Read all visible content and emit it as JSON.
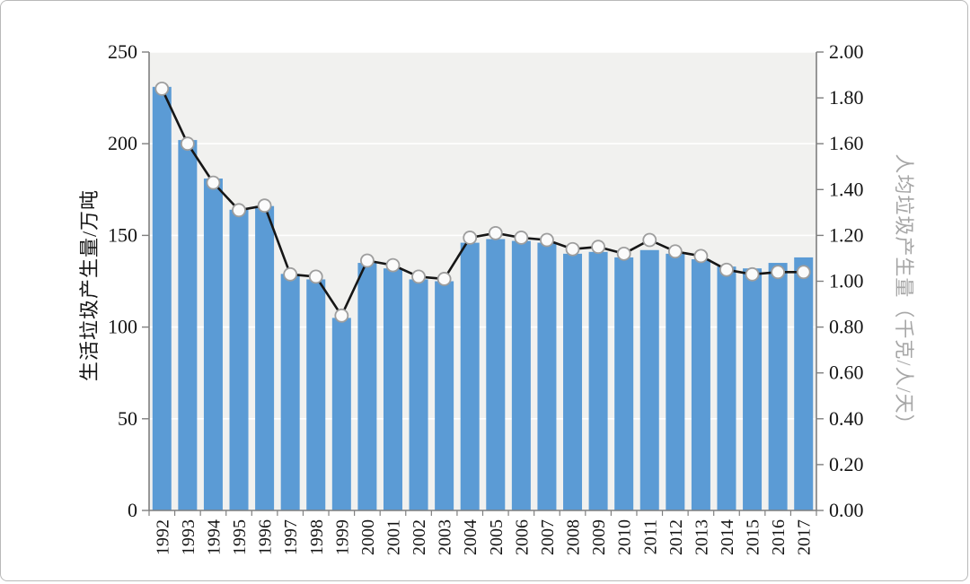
{
  "chart_data": {
    "type": "bar+line",
    "title": "",
    "categories": [
      "1992",
      "1993",
      "1994",
      "1995",
      "1996",
      "1997",
      "1998",
      "1999",
      "2000",
      "2001",
      "2002",
      "2003",
      "2004",
      "2005",
      "2006",
      "2007",
      "2008",
      "2009",
      "2010",
      "2011",
      "2012",
      "2013",
      "2014",
      "2015",
      "2016",
      "2017"
    ],
    "series": [
      {
        "name": "生活垃圾产生量",
        "type": "bar",
        "axis": "left",
        "values": [
          231,
          202,
          181,
          164,
          166,
          129,
          126,
          105,
          135,
          132,
          126,
          125,
          146,
          148,
          147,
          146,
          140,
          141,
          138,
          142,
          140,
          137,
          133,
          132,
          135,
          138
        ]
      },
      {
        "name": "人均垃圾产生量",
        "type": "line",
        "axis": "right",
        "values": [
          1.84,
          1.6,
          1.43,
          1.31,
          1.33,
          1.03,
          1.02,
          0.85,
          1.09,
          1.07,
          1.02,
          1.01,
          1.19,
          1.21,
          1.19,
          1.18,
          1.14,
          1.15,
          1.12,
          1.18,
          1.13,
          1.11,
          1.05,
          1.03,
          1.04,
          1.04
        ]
      }
    ],
    "left_axis": {
      "label": "生活垃圾产生量/万吨",
      "min": 0,
      "max": 250,
      "step": 50,
      "tick_labels": [
        "0",
        "50",
        "100",
        "150",
        "200",
        "250"
      ]
    },
    "right_axis": {
      "label": "人均垃圾产生量（千克/人/天）",
      "min": 0,
      "max": 2.0,
      "step": 0.2,
      "tick_labels": [
        "0.00",
        "0.20",
        "0.40",
        "0.60",
        "0.80",
        "1.00",
        "1.20",
        "1.40",
        "1.60",
        "1.80",
        "2.00"
      ]
    },
    "grid": true,
    "legend": "none"
  },
  "colors": {
    "bar": "#5b9bd5",
    "line": "#161616",
    "marker_fill": "#fbfbfb",
    "marker_stroke": "#9e9e9e",
    "plot_background": "#f1f1ef",
    "gridline": "#ffffff",
    "axis": "#7f7f7f",
    "tick_text": "#141414"
  }
}
